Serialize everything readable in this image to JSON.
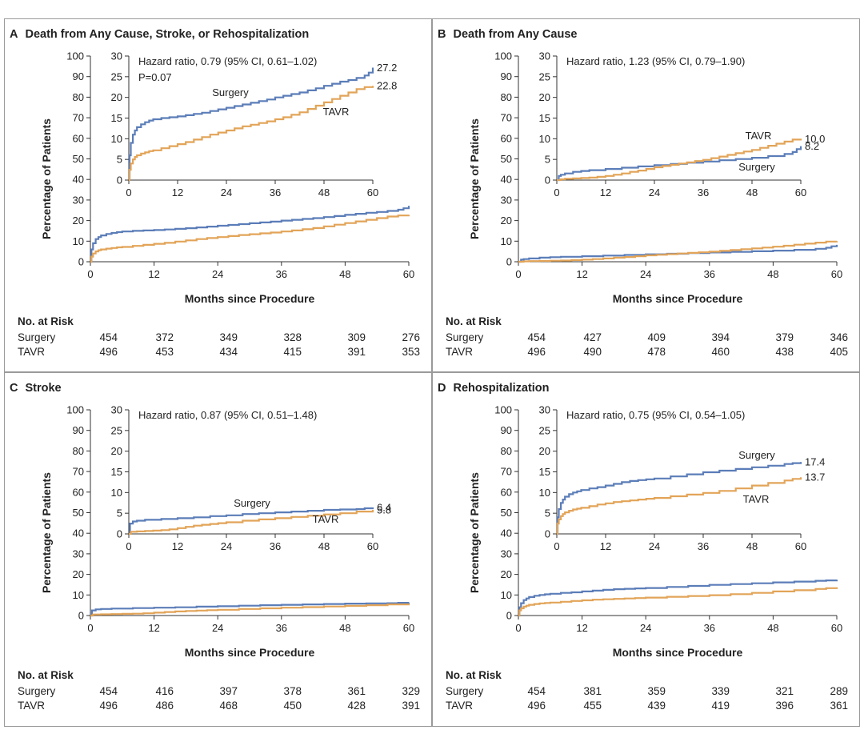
{
  "colors": {
    "surgery": "#5b7db8",
    "tavr": "#e2a458",
    "axis": "#333333"
  },
  "common": {
    "ylabel": "Percentage of Patients",
    "xlabel": "Months since Procedure",
    "risk_title": "No. at Risk",
    "x_ticks": [
      "0",
      "12",
      "24",
      "36",
      "48",
      "60"
    ],
    "main_y_ticks": [
      "0",
      "10",
      "20",
      "30",
      "40",
      "50",
      "60",
      "70",
      "80",
      "90",
      "100"
    ],
    "inset_y_ticks": [
      "0",
      "5",
      "10",
      "15",
      "20",
      "25",
      "30"
    ]
  },
  "chart_data": [
    {
      "type": "line",
      "panel": "A",
      "title": "Death from Any Cause, Stroke, or Rehospitalization",
      "xlim": [
        0,
        60
      ],
      "ylim": [
        0,
        100
      ],
      "inset_ylim": [
        0,
        30
      ],
      "hazard_text": "Hazard ratio, 0.79 (95% CI, 0.61–1.02)",
      "p_text": "P=0.07",
      "series": [
        {
          "name": "Surgery",
          "end_label": "27.2",
          "x": [
            0,
            0.2,
            0.5,
            1,
            1.5,
            2,
            3,
            4,
            5,
            6,
            8,
            10,
            12,
            14,
            16,
            18,
            20,
            22,
            24,
            26,
            28,
            30,
            32,
            34,
            36,
            38,
            40,
            42,
            44,
            46,
            48,
            50,
            52,
            54,
            56,
            58,
            59,
            60
          ],
          "y": [
            0,
            6,
            9,
            11,
            12,
            12.8,
            13.5,
            14,
            14.4,
            14.7,
            15,
            15.2,
            15.4,
            15.7,
            16,
            16.3,
            16.7,
            17.1,
            17.5,
            17.9,
            18.3,
            18.7,
            19.1,
            19.5,
            20,
            20.4,
            20.8,
            21.2,
            21.7,
            22.2,
            22.8,
            23.3,
            23.8,
            24.2,
            24.7,
            25.3,
            26,
            27.2
          ]
        },
        {
          "name": "TAVR",
          "end_label": "22.8",
          "x": [
            0,
            0.2,
            0.5,
            1,
            1.5,
            2,
            3,
            4,
            5,
            6,
            8,
            10,
            12,
            14,
            16,
            18,
            20,
            22,
            24,
            26,
            28,
            30,
            32,
            34,
            36,
            38,
            40,
            42,
            44,
            46,
            48,
            50,
            52,
            54,
            56,
            58,
            60
          ],
          "y": [
            0,
            2.5,
            4,
            5,
            5.6,
            6,
            6.4,
            6.7,
            7,
            7.2,
            7.7,
            8.2,
            8.7,
            9.2,
            9.8,
            10.4,
            11,
            11.5,
            12,
            12.5,
            13,
            13.4,
            13.8,
            14.2,
            14.7,
            15.2,
            15.8,
            16.4,
            17.2,
            18,
            18.8,
            19.6,
            20.4,
            21.2,
            22,
            22.5,
            22.8
          ]
        }
      ],
      "risk": {
        "surgery": [
          "454",
          "372",
          "349",
          "328",
          "309",
          "276"
        ],
        "tavr": [
          "496",
          "453",
          "434",
          "415",
          "391",
          "353"
        ]
      }
    },
    {
      "type": "line",
      "panel": "B",
      "title": "Death from Any Cause",
      "xlim": [
        0,
        60
      ],
      "ylim": [
        0,
        100
      ],
      "inset_ylim": [
        0,
        30
      ],
      "hazard_text": "Hazard ratio, 1.23 (95% CI, 0.79–1.90)",
      "series": [
        {
          "name": "Surgery",
          "end_label": "8.2",
          "x": [
            0,
            0.5,
            1,
            2,
            4,
            6,
            8,
            12,
            16,
            20,
            24,
            28,
            32,
            36,
            40,
            44,
            48,
            52,
            56,
            58,
            59,
            60
          ],
          "y": [
            0,
            1,
            1.3,
            1.6,
            2,
            2.2,
            2.4,
            2.7,
            3,
            3.3,
            3.6,
            3.9,
            4.2,
            4.5,
            4.8,
            5.1,
            5.4,
            5.8,
            6.3,
            6.8,
            7.5,
            8.2
          ]
        },
        {
          "name": "TAVR",
          "end_label": "10.0",
          "x": [
            0,
            1,
            2,
            4,
            6,
            8,
            10,
            12,
            14,
            16,
            18,
            20,
            22,
            24,
            26,
            28,
            30,
            32,
            34,
            36,
            38,
            40,
            42,
            44,
            46,
            48,
            50,
            52,
            54,
            56,
            58,
            60
          ],
          "y": [
            0,
            0.2,
            0.3,
            0.4,
            0.5,
            0.6,
            0.8,
            1,
            1.3,
            1.6,
            2,
            2.3,
            2.7,
            3.1,
            3.4,
            3.7,
            4,
            4.3,
            4.6,
            4.9,
            5.3,
            5.7,
            6.1,
            6.5,
            6.9,
            7.3,
            7.8,
            8.3,
            8.8,
            9.3,
            9.8,
            10
          ]
        }
      ],
      "risk": {
        "surgery": [
          "454",
          "427",
          "409",
          "394",
          "379",
          "346"
        ],
        "tavr": [
          "496",
          "490",
          "478",
          "460",
          "438",
          "405"
        ]
      }
    },
    {
      "type": "line",
      "panel": "C",
      "title": "Stroke",
      "xlim": [
        0,
        60
      ],
      "ylim": [
        0,
        100
      ],
      "inset_ylim": [
        0,
        30
      ],
      "hazard_text": "Hazard ratio, 0.87 (95% CI, 0.51–1.48)",
      "series": [
        {
          "name": "Surgery",
          "end_label": "6.4",
          "x": [
            0,
            0.3,
            1,
            2,
            4,
            8,
            12,
            16,
            20,
            24,
            28,
            32,
            36,
            40,
            44,
            48,
            52,
            56,
            58,
            60
          ],
          "y": [
            0,
            2.5,
            3,
            3.2,
            3.4,
            3.6,
            3.8,
            4,
            4.3,
            4.5,
            4.8,
            5,
            5.2,
            5.4,
            5.6,
            5.8,
            5.9,
            6,
            6.2,
            6.4
          ]
        },
        {
          "name": "TAVR",
          "end_label": "5.8",
          "x": [
            0,
            0.5,
            2,
            4,
            6,
            8,
            10,
            12,
            14,
            16,
            18,
            20,
            22,
            24,
            28,
            32,
            36,
            40,
            44,
            48,
            52,
            56,
            60
          ],
          "y": [
            0,
            0.5,
            0.6,
            0.7,
            0.8,
            0.9,
            1.1,
            1.4,
            1.7,
            2,
            2.2,
            2.4,
            2.6,
            2.8,
            3.2,
            3.5,
            3.8,
            4.1,
            4.4,
            4.7,
            5,
            5.4,
            5.8
          ]
        }
      ],
      "risk": {
        "surgery": [
          "454",
          "416",
          "397",
          "378",
          "361",
          "329"
        ],
        "tavr": [
          "496",
          "486",
          "468",
          "450",
          "428",
          "391"
        ]
      }
    },
    {
      "type": "line",
      "panel": "D",
      "title": "Rehospitalization",
      "xlim": [
        0,
        60
      ],
      "ylim": [
        0,
        100
      ],
      "inset_ylim": [
        0,
        30
      ],
      "hazard_text": "Hazard ratio, 0.75 (95% CI, 0.54–1.05)",
      "series": [
        {
          "name": "Surgery",
          "end_label": "17.4",
          "x": [
            0,
            0.2,
            0.5,
            1,
            1.5,
            2,
            3,
            4,
            5,
            6,
            8,
            10,
            12,
            14,
            16,
            18,
            20,
            22,
            24,
            28,
            32,
            36,
            40,
            44,
            48,
            52,
            56,
            58,
            60
          ],
          "y": [
            0,
            4,
            6,
            7.5,
            8.3,
            9,
            9.6,
            10,
            10.3,
            10.6,
            11,
            11.3,
            11.7,
            12.1,
            12.5,
            12.8,
            13,
            13.2,
            13.4,
            13.9,
            14.4,
            14.9,
            15.3,
            15.7,
            16.1,
            16.5,
            16.9,
            17.1,
            17.4
          ]
        },
        {
          "name": "TAVR",
          "end_label": "13.7",
          "x": [
            0,
            0.2,
            0.5,
            1,
            1.5,
            2,
            3,
            4,
            5,
            6,
            8,
            10,
            12,
            14,
            16,
            18,
            20,
            22,
            24,
            28,
            32,
            36,
            40,
            44,
            48,
            52,
            56,
            58,
            60
          ],
          "y": [
            0,
            2.5,
            3.5,
            4.3,
            4.8,
            5.2,
            5.6,
            5.9,
            6.1,
            6.3,
            6.7,
            7.1,
            7.4,
            7.7,
            7.9,
            8.1,
            8.3,
            8.5,
            8.7,
            9.1,
            9.5,
            9.9,
            10.4,
            11,
            11.7,
            12.3,
            12.9,
            13.3,
            13.7
          ]
        }
      ],
      "risk": {
        "surgery": [
          "454",
          "381",
          "359",
          "339",
          "321",
          "289"
        ],
        "tavr": [
          "496",
          "455",
          "439",
          "419",
          "396",
          "361"
        ]
      }
    }
  ]
}
